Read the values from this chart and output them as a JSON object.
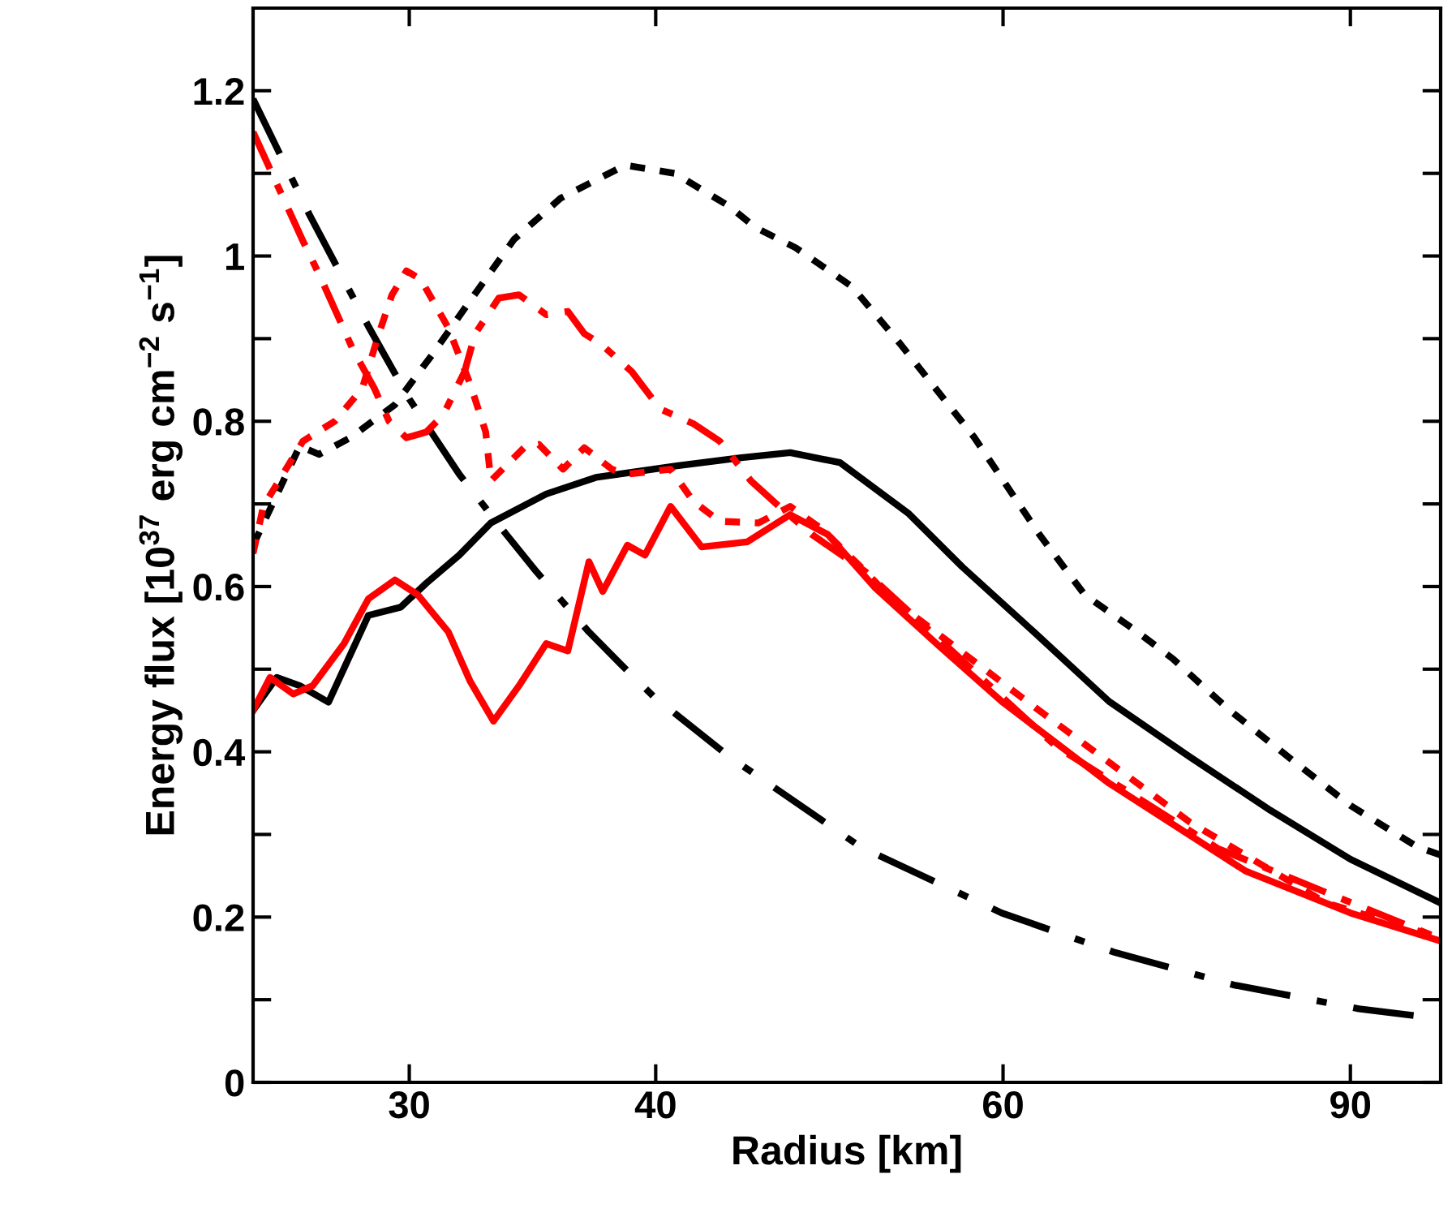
{
  "chart_data": {
    "type": "line",
    "xlabel": "Radius [km]",
    "ylabel": "Energy flux [10$^{37}$ erg cm$^{−2}$ s$^{−1}$]",
    "log": "x",
    "xlim": [
      25,
      100
    ],
    "xticks": [
      30,
      40,
      60,
      90
    ],
    "ylim": [
      0,
      1.3
    ],
    "yticks": [
      0,
      {
        "value": 0.1,
        "label": null
      },
      {
        "value": 0.2,
        "label": "0.2"
      },
      {
        "value": 0.3,
        "label": null
      },
      {
        "value": 0.4,
        "label": "0.4"
      },
      {
        "value": 0.5,
        "label": null
      },
      {
        "value": 0.6,
        "label": "0.6"
      },
      {
        "value": 0.7,
        "label": null
      },
      {
        "value": 0.8,
        "label": "0.8"
      },
      {
        "value": 0.9,
        "label": null
      },
      1,
      {
        "value": 1.1,
        "label": null
      },
      {
        "value": 1.2,
        "label": "1.2"
      }
    ],
    "grid": false,
    "legend": false,
    "marker": "none",
    "series": [
      {
        "color": "#000000",
        "line_style": "dotted",
        "x": [
          25,
          26.4,
          27,
          28,
          29.5,
          30.8,
          32.3,
          33.9,
          35.8,
          38.6,
          40.9,
          43.6,
          44.9,
          47.1,
          50.3,
          53.2,
          58.0,
          62.6,
          66.0,
          70.2,
          73.2,
          78.1,
          84.3,
          90,
          97.3,
          100
        ],
        "values": [
          0.65,
          0.77,
          0.76,
          0.78,
          0.82,
          0.88,
          0.95,
          1.02,
          1.07,
          1.11,
          1.1,
          1.06,
          1.035,
          1.01,
          0.963,
          0.894,
          0.781,
          0.663,
          0.59,
          0.545,
          0.512,
          0.451,
          0.388,
          0.335,
          0.285,
          0.275
        ]
      },
      {
        "color": "#000000",
        "line_style": "solid",
        "x": [
          25,
          25.7,
          26.4,
          27.3,
          28.6,
          29.7,
          30.6,
          31.8,
          33.0,
          35.2,
          37.3,
          41.0,
          44.2,
          46.8,
          49.6,
          53.7,
          57.2,
          62.2,
          67.9,
          74.6,
          82.0,
          90,
          100
        ],
        "values": [
          0.45,
          0.49,
          0.48,
          0.46,
          0.565,
          0.575,
          0.604,
          0.638,
          0.677,
          0.712,
          0.732,
          0.746,
          0.756,
          0.762,
          0.75,
          0.689,
          0.624,
          0.545,
          0.461,
          0.394,
          0.329,
          0.27,
          0.217
        ]
      },
      {
        "color": "#000000",
        "line_style": "dashdot",
        "x": [
          25,
          26.7,
          28.6,
          30,
          31.8,
          33.6,
          34.8,
          37.0,
          38.4,
          39.9,
          43.6,
          50.8,
          59.9,
          68.4,
          78.5,
          90.9,
          100
        ],
        "values": [
          1.19,
          1.05,
          0.915,
          0.827,
          0.736,
          0.663,
          0.618,
          0.545,
          0.506,
          0.467,
          0.394,
          0.285,
          0.205,
          0.157,
          0.118,
          0.089,
          0.077
        ]
      },
      {
        "color": "#ff0000",
        "line_style": "solid",
        "x": [
          25,
          25.5,
          26.2,
          26.8,
          27.8,
          28.6,
          29.5,
          30.3,
          31.4,
          32.2,
          33.1,
          34.1,
          35.2,
          36.1,
          37.0,
          37.6,
          38.7,
          39.5,
          40.7,
          42.2,
          44.5,
          46.8,
          48.9,
          51.7,
          55.8,
          59.9,
          67.9,
          79.6,
          90,
          100
        ],
        "values": [
          0.45,
          0.49,
          0.47,
          0.48,
          0.531,
          0.585,
          0.608,
          0.59,
          0.545,
          0.486,
          0.437,
          0.48,
          0.531,
          0.522,
          0.63,
          0.594,
          0.65,
          0.638,
          0.697,
          0.648,
          0.654,
          0.687,
          0.663,
          0.598,
          0.526,
          0.461,
          0.362,
          0.256,
          0.205,
          0.171
        ]
      },
      {
        "color": "#ff0000",
        "line_style": "dotted",
        "x": [
          25,
          25.3,
          26.5,
          27.5,
          28.4,
          28.9,
          29.4,
          29.9,
          30.4,
          31.4,
          32.2,
          32.8,
          33.0,
          34.3,
          34.9,
          35.9,
          36.8,
          38.0,
          38.7,
          40.7,
          41.8,
          43.1,
          45.1,
          46.8,
          48.6,
          51.1,
          52.7,
          61.7,
          74.6,
          87.5,
          100
        ],
        "values": [
          0.64,
          0.697,
          0.776,
          0.8,
          0.84,
          0.9,
          0.953,
          0.982,
          0.972,
          0.913,
          0.846,
          0.787,
          0.728,
          0.768,
          0.772,
          0.742,
          0.768,
          0.742,
          0.736,
          0.742,
          0.703,
          0.679,
          0.677,
          0.697,
          0.669,
          0.618,
          0.585,
          0.461,
          0.315,
          0.217,
          0.175
        ]
      },
      {
        "color": "#ff0000",
        "line_style": "dashed",
        "x": [
          25,
          26.5,
          27.0,
          28.1,
          28.8,
          29.3,
          29.9,
          30.6,
          31.2,
          32.0,
          32.4,
          33.3,
          34.1,
          35.2,
          36.1,
          36.8,
          37.5,
          38.9,
          40.2,
          41.8,
          43.1,
          44.7,
          46.2,
          48.0,
          51.1,
          63.8,
          77.1,
          99.2,
          100
        ],
        "values": [
          1.15,
          1.018,
          0.978,
          0.886,
          0.84,
          0.8,
          0.78,
          0.787,
          0.807,
          0.86,
          0.906,
          0.949,
          0.953,
          0.929,
          0.933,
          0.906,
          0.894,
          0.86,
          0.815,
          0.797,
          0.776,
          0.728,
          0.697,
          0.663,
          0.618,
          0.407,
          0.283,
          0.177,
          0.174
        ]
      }
    ]
  }
}
